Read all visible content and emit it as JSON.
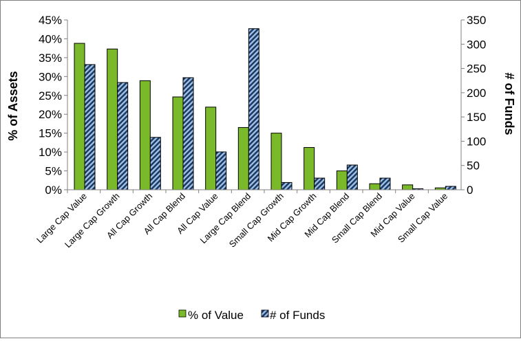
{
  "chart_data": {
    "type": "bar",
    "categories": [
      "Large Cap Value",
      "Large Cap Growth",
      "All Cap Growth",
      "All Cap Blend",
      "All Cap Value",
      "Large Cap Blend",
      "Small Cap Growth",
      "Mid Cap Growth",
      "Mid Cap Blend",
      "Small Cap Blend",
      "Mid Cap Value",
      "Small Cap Value"
    ],
    "series": [
      {
        "name": "% of Value",
        "axis": "left",
        "color": "#7ab929",
        "values": [
          38.8,
          37.3,
          28.9,
          24.6,
          21.9,
          16.5,
          15.0,
          11.2,
          5.0,
          1.6,
          1.3,
          0.5
        ]
      },
      {
        "name": "# of Funds",
        "axis": "right",
        "color": "#1f3864",
        "hatch_color": "#9dc3e6",
        "values": [
          258,
          221,
          108,
          231,
          78,
          332,
          15,
          24,
          51,
          24,
          2,
          7
        ]
      }
    ],
    "ylabel": "% of Assets",
    "y2label": "# of Funds",
    "ylim": [
      0,
      45
    ],
    "yticks": [
      "0%",
      "5%",
      "10%",
      "15%",
      "20%",
      "25%",
      "30%",
      "35%",
      "40%",
      "45%"
    ],
    "y2lim": [
      0,
      350
    ],
    "y2ticks": [
      "0",
      "50",
      "100",
      "150",
      "200",
      "250",
      "300",
      "350"
    ],
    "grid": false,
    "legend_position": "bottom"
  }
}
